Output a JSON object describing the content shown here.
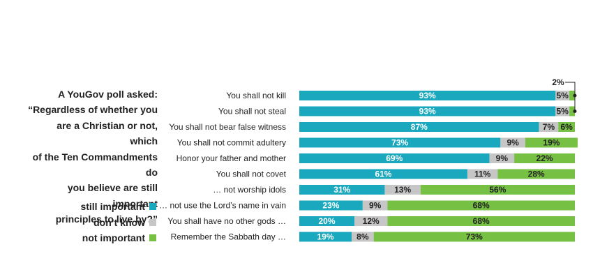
{
  "intro": {
    "line1": "A YouGov poll asked:",
    "line2": "“Regardless of whether you",
    "line3": "are a Christian or not, which",
    "line4": "of the Ten Commandments do",
    "line5": "you believe are still important",
    "line6": "principles to live by?”"
  },
  "legend": [
    {
      "label": "still important",
      "color": "#1aa8bf"
    },
    {
      "label": "don’t know",
      "color": "#c6c6c6"
    },
    {
      "label": "not important",
      "color": "#76c043"
    }
  ],
  "chart_data": {
    "type": "bar",
    "orientation": "horizontal-stacked-percent",
    "categories": [
      "You shall not kill",
      "You shall not steal",
      "You shall not bear false witness",
      "You shall not commit adultery",
      "Honor your father and mother",
      "You shall not covet",
      "… not worship idols",
      "… not use the Lord’s name in vain",
      "You shall have no other gods …",
      "Remember the Sabbath day …"
    ],
    "series": [
      {
        "name": "still important",
        "color": "#1aa8bf",
        "values": [
          93,
          93,
          87,
          73,
          69,
          61,
          31,
          23,
          20,
          19
        ]
      },
      {
        "name": "don’t know",
        "color": "#c6c6c6",
        "values": [
          5,
          5,
          7,
          9,
          9,
          11,
          13,
          9,
          12,
          8
        ]
      },
      {
        "name": "not important",
        "color": "#76c043",
        "values": [
          2,
          2,
          6,
          19,
          22,
          28,
          56,
          68,
          68,
          73
        ]
      }
    ],
    "labels": [
      [
        "93%",
        "5%",
        ""
      ],
      [
        "93%",
        "5%",
        ""
      ],
      [
        "87%",
        "7%",
        "6%"
      ],
      [
        "73%",
        "9%",
        "19%"
      ],
      [
        "69%",
        "9%",
        "22%"
      ],
      [
        "61%",
        "11%",
        "28%"
      ],
      [
        "31%",
        "13%",
        "56%"
      ],
      [
        "23%",
        "9%",
        "68%"
      ],
      [
        "20%",
        "12%",
        "68%"
      ],
      [
        "19%",
        "8%",
        "73%"
      ]
    ],
    "callout": "2%",
    "xlim": [
      0,
      100
    ]
  }
}
